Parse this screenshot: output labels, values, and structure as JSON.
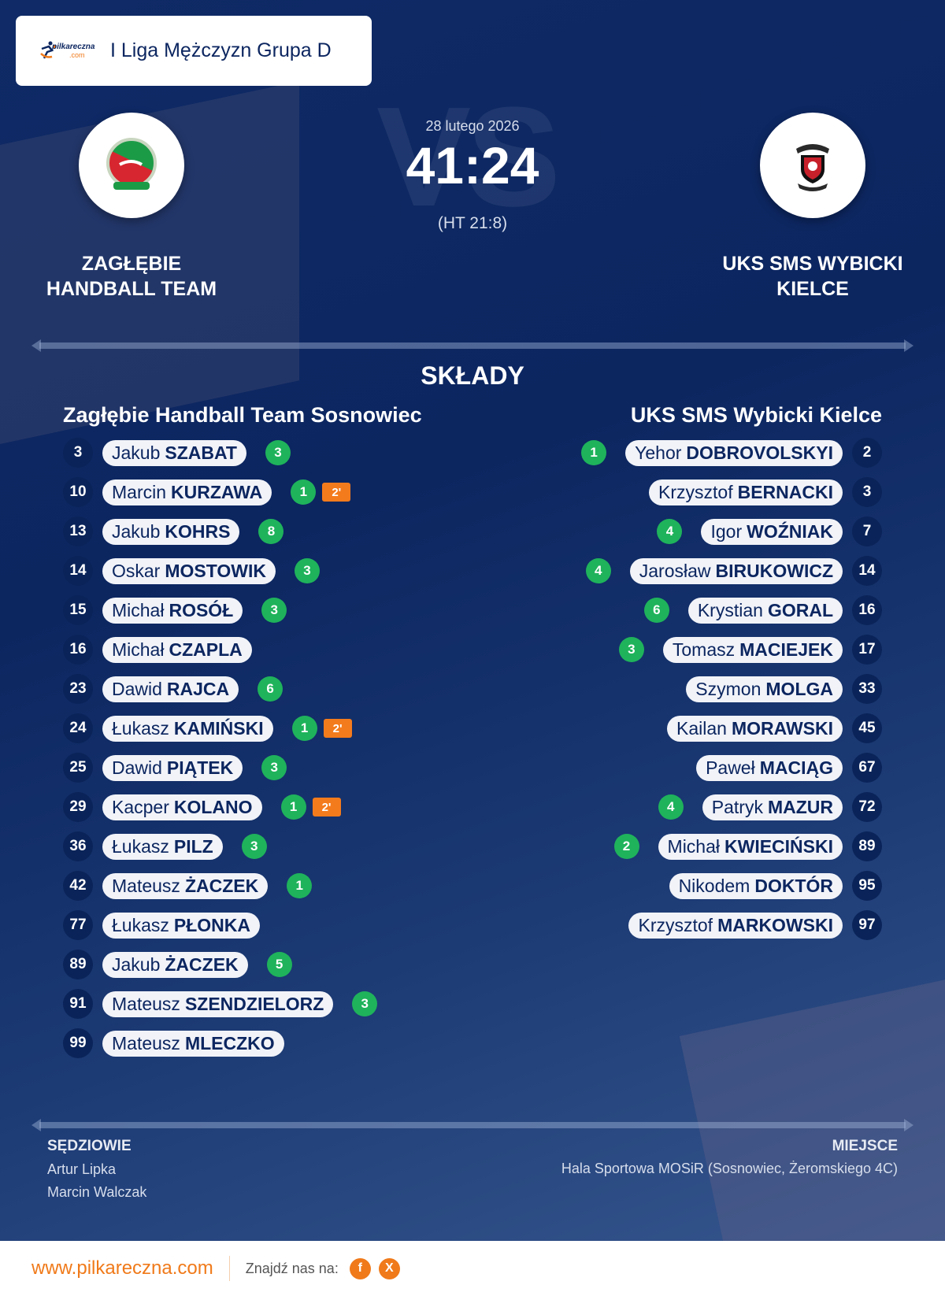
{
  "header": {
    "logo_text": "pilkareczna",
    "logo_suffix": ".com",
    "league": "I Liga Mężczyzn Grupa D"
  },
  "match": {
    "date": "28 lutego 2026",
    "score": "41:24",
    "halftime": "(HT 21:8)",
    "watermark": "VS"
  },
  "home": {
    "name_line1": "ZAGŁĘBIE",
    "name_line2": "HANDBALL TEAM",
    "squad_title": "Zagłębie Handball Team Sosnowiec",
    "players": [
      {
        "number": "3",
        "first": "Jakub",
        "last": "SZABAT",
        "goals": "3",
        "penalty": ""
      },
      {
        "number": "10",
        "first": "Marcin",
        "last": "KURZAWA",
        "goals": "1",
        "penalty": "2'"
      },
      {
        "number": "13",
        "first": "Jakub",
        "last": "KOHRS",
        "goals": "8",
        "penalty": ""
      },
      {
        "number": "14",
        "first": "Oskar",
        "last": "MOSTOWIK",
        "goals": "3",
        "penalty": ""
      },
      {
        "number": "15",
        "first": "Michał",
        "last": "ROSÓŁ",
        "goals": "3",
        "penalty": ""
      },
      {
        "number": "16",
        "first": "Michał",
        "last": "CZAPLA",
        "goals": "",
        "penalty": ""
      },
      {
        "number": "23",
        "first": "Dawid",
        "last": "RAJCA",
        "goals": "6",
        "penalty": ""
      },
      {
        "number": "24",
        "first": "Łukasz",
        "last": "KAMIŃSKI",
        "goals": "1",
        "penalty": "2'"
      },
      {
        "number": "25",
        "first": "Dawid",
        "last": "PIĄTEK",
        "goals": "3",
        "penalty": ""
      },
      {
        "number": "29",
        "first": "Kacper",
        "last": "KOLANO",
        "goals": "1",
        "penalty": "2'"
      },
      {
        "number": "36",
        "first": "Łukasz",
        "last": "PILZ",
        "goals": "3",
        "penalty": ""
      },
      {
        "number": "42",
        "first": "Mateusz",
        "last": "ŻACZEK",
        "goals": "1",
        "penalty": ""
      },
      {
        "number": "77",
        "first": "Łukasz",
        "last": "PŁONKA",
        "goals": "",
        "penalty": ""
      },
      {
        "number": "89",
        "first": "Jakub",
        "last": "ŻACZEK",
        "goals": "5",
        "penalty": ""
      },
      {
        "number": "91",
        "first": "Mateusz",
        "last": "SZENDZIELORZ",
        "goals": "3",
        "penalty": ""
      },
      {
        "number": "99",
        "first": "Mateusz",
        "last": "MLECZKO",
        "goals": "",
        "penalty": ""
      }
    ]
  },
  "away": {
    "name_line1": "UKS SMS WYBICKI",
    "name_line2": "KIELCE",
    "squad_title": "UKS SMS Wybicki Kielce",
    "players": [
      {
        "number": "2",
        "first": "Yehor",
        "last": "DOBROVOLSKYI",
        "goals": "1",
        "penalty": ""
      },
      {
        "number": "3",
        "first": "Krzysztof",
        "last": "BERNACKI",
        "goals": "",
        "penalty": ""
      },
      {
        "number": "7",
        "first": "Igor",
        "last": "WOŹNIAK",
        "goals": "4",
        "penalty": ""
      },
      {
        "number": "14",
        "first": "Jarosław",
        "last": "BIRUKOWICZ",
        "goals": "4",
        "penalty": ""
      },
      {
        "number": "16",
        "first": "Krystian",
        "last": "GORAL",
        "goals": "6",
        "penalty": ""
      },
      {
        "number": "17",
        "first": "Tomasz",
        "last": "MACIEJEK",
        "goals": "3",
        "penalty": ""
      },
      {
        "number": "33",
        "first": "Szymon",
        "last": "MOLGA",
        "goals": "",
        "penalty": ""
      },
      {
        "number": "45",
        "first": "Kailan",
        "last": "MORAWSKI",
        "goals": "",
        "penalty": ""
      },
      {
        "number": "67",
        "first": "Paweł",
        "last": "MACIĄG",
        "goals": "",
        "penalty": ""
      },
      {
        "number": "72",
        "first": "Patryk",
        "last": "MAZUR",
        "goals": "4",
        "penalty": ""
      },
      {
        "number": "89",
        "first": "Michał",
        "last": "KWIECIŃSKI",
        "goals": "2",
        "penalty": ""
      },
      {
        "number": "95",
        "first": "Nikodem",
        "last": "DOKTÓR",
        "goals": "",
        "penalty": ""
      },
      {
        "number": "97",
        "first": "Krzysztof",
        "last": "MARKOWSKI",
        "goals": "",
        "penalty": ""
      }
    ]
  },
  "section": {
    "lineups_title": "SKŁADY"
  },
  "referees": {
    "title": "SĘDZIOWIE",
    "names": [
      "Artur Lipka",
      "Marcin Walczak"
    ]
  },
  "venue": {
    "title": "MIEJSCE",
    "value": "Hala Sportowa MOSiR (Sosnowiec, Żeromskiego 4C)"
  },
  "footer": {
    "site": "www.pilkareczna.com",
    "find_us": "Znajdź nas na:",
    "facebook": "f",
    "x": "X"
  },
  "colors": {
    "background": "#0c2660",
    "goal": "#1fb35b",
    "penalty": "#f47b1c",
    "accent": "#f07a1a"
  }
}
